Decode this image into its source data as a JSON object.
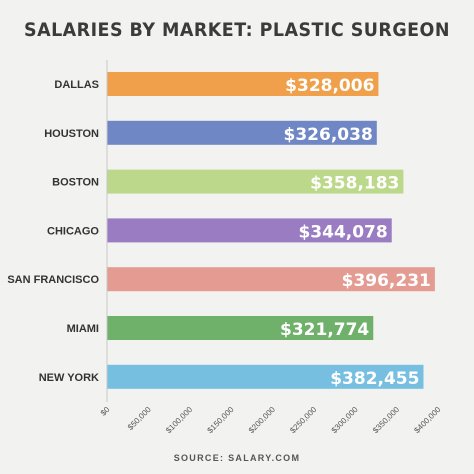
{
  "title": "SALARIES BY MARKET: PLASTIC SURGEON",
  "source": "SOURCE: SALARY.COM",
  "chart_data": {
    "type": "bar",
    "orientation": "horizontal",
    "title": "SALARIES BY MARKET: PLASTIC SURGEON",
    "categories": [
      "DALLAS",
      "HOUSTON",
      "BOSTON",
      "CHICAGO",
      "SAN FRANCISCO",
      "MIAMI",
      "NEW YORK"
    ],
    "values": [
      328006,
      326038,
      358183,
      344078,
      396231,
      321774,
      382455
    ],
    "value_labels": [
      "$328,006",
      "$326,038",
      "$358,183",
      "$344,078",
      "$396,231",
      "$321,774",
      "$382,455"
    ],
    "colors": [
      "#f0a04b",
      "#6f87c4",
      "#bcd98b",
      "#9a7cc2",
      "#e39b92",
      "#6fb06a",
      "#76bfe0"
    ],
    "xlim": [
      0,
      400000
    ],
    "xticks": [
      0,
      50000,
      100000,
      150000,
      200000,
      250000,
      300000,
      350000,
      400000
    ],
    "xtick_labels": [
      "$0",
      "$50,000",
      "$100,000",
      "$150,000",
      "$200,000",
      "$250,000",
      "$300,000",
      "$350,000",
      "$400,000"
    ],
    "xlabel": "",
    "ylabel": "",
    "grid": false,
    "legend": "none"
  }
}
